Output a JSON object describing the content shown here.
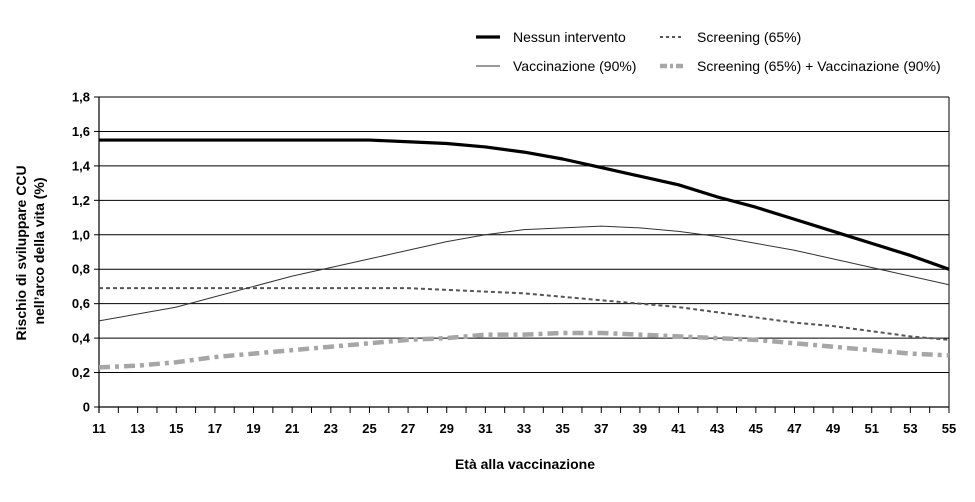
{
  "chart_data": {
    "type": "line",
    "title": "",
    "xlabel": "Età alla vaccinazione",
    "ylabel": [
      "Rischio di sviluppare CCU",
      "nell’arco della vita (%)"
    ],
    "xlim": [
      11,
      55
    ],
    "ylim": [
      0,
      1.8
    ],
    "grid": true,
    "legend_position": "top-right",
    "x_ticks": [
      11,
      13,
      15,
      17,
      19,
      21,
      23,
      25,
      27,
      29,
      31,
      33,
      35,
      37,
      39,
      41,
      43,
      45,
      47,
      49,
      51,
      53,
      55
    ],
    "y_ticks": [
      0,
      0.2,
      0.4,
      0.6,
      0.8,
      1.0,
      1.2,
      1.4,
      1.6,
      1.8
    ],
    "y_tick_labels": [
      "0",
      "0,2",
      "0,4",
      "0,6",
      "0,8",
      "1,0",
      "1,2",
      "1,4",
      "1,6",
      "1,8"
    ],
    "x": [
      11,
      13,
      15,
      17,
      19,
      21,
      23,
      25,
      27,
      29,
      31,
      33,
      35,
      37,
      39,
      41,
      43,
      45,
      47,
      49,
      51,
      53,
      55
    ],
    "series": [
      {
        "name": "Nessun intervento",
        "style": "solid-thick",
        "color": "#000000",
        "values": [
          1.55,
          1.55,
          1.55,
          1.55,
          1.55,
          1.55,
          1.55,
          1.55,
          1.54,
          1.53,
          1.51,
          1.48,
          1.44,
          1.39,
          1.34,
          1.29,
          1.22,
          1.16,
          1.09,
          1.02,
          0.95,
          0.88,
          0.8
        ]
      },
      {
        "name": "Screening (65%)",
        "style": "dashed",
        "color": "#555555",
        "values": [
          0.69,
          0.69,
          0.69,
          0.69,
          0.69,
          0.69,
          0.69,
          0.69,
          0.69,
          0.68,
          0.67,
          0.66,
          0.64,
          0.62,
          0.6,
          0.58,
          0.55,
          0.52,
          0.49,
          0.47,
          0.44,
          0.41,
          0.39
        ]
      },
      {
        "name": "Vaccinazione (90%)",
        "style": "solid-thin",
        "color": "#333333",
        "values": [
          0.5,
          0.54,
          0.58,
          0.64,
          0.7,
          0.76,
          0.81,
          0.86,
          0.91,
          0.96,
          1.0,
          1.03,
          1.04,
          1.05,
          1.04,
          1.02,
          0.99,
          0.95,
          0.91,
          0.86,
          0.81,
          0.76,
          0.71
        ]
      },
      {
        "name": "Screening (65%) + Vaccinazione (90%)",
        "style": "dashdot-thick",
        "color": "#a6a6a6",
        "values": [
          0.23,
          0.24,
          0.26,
          0.29,
          0.31,
          0.33,
          0.35,
          0.37,
          0.39,
          0.4,
          0.42,
          0.42,
          0.43,
          0.43,
          0.42,
          0.41,
          0.4,
          0.39,
          0.37,
          0.35,
          0.33,
          0.31,
          0.3
        ]
      }
    ]
  }
}
